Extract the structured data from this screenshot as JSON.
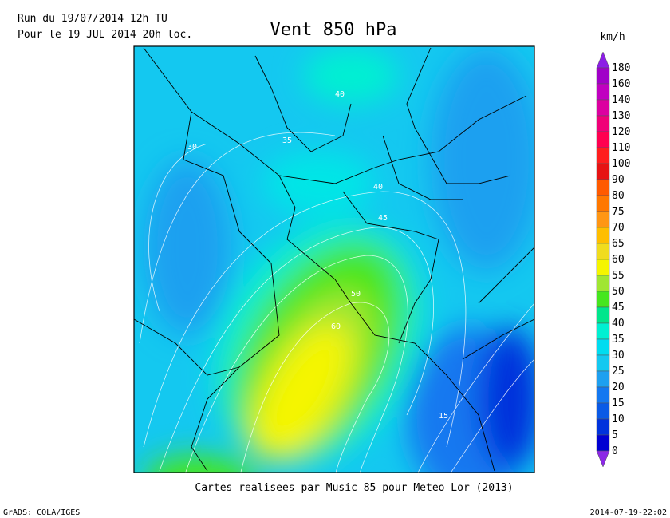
{
  "header": {
    "run_line": "Run du 19/07/2014 12h TU",
    "valid_line": "Pour le 19 JUL 2014 20h loc.",
    "title": "Vent 850 hPa"
  },
  "map": {
    "contour_labels": [
      "40",
      "35",
      "30",
      "40",
      "45",
      "50",
      "60",
      "15"
    ]
  },
  "legend": {
    "unit": "km/h",
    "levels": [
      "180",
      "160",
      "140",
      "130",
      "120",
      "110",
      "100",
      "90",
      "80",
      "75",
      "70",
      "65",
      "60",
      "55",
      "50",
      "45",
      "40",
      "35",
      "30",
      "25",
      "20",
      "15",
      "10",
      "5",
      "0"
    ],
    "colors": [
      "#8c1ee6",
      "#a000c8",
      "#c000c0",
      "#dc00a0",
      "#f00078",
      "#ff0050",
      "#ff1e1e",
      "#e61414",
      "#ff5a00",
      "#ff7800",
      "#ff9614",
      "#ffbe00",
      "#f0dc1e",
      "#f5f500",
      "#a0e632",
      "#46e61e",
      "#00e68c",
      "#00f0d2",
      "#00dcf0",
      "#14c8f0",
      "#1ea0f0",
      "#1478f0",
      "#0a5ae6",
      "#0032dc",
      "#0000d2",
      "#8c28e6"
    ]
  },
  "footer": {
    "credit": "Cartes realisees par Music 85 pour Meteo Lor (2013)",
    "software": "GrADS: COLA/IGES",
    "timestamp": "2014-07-19-22:02"
  }
}
